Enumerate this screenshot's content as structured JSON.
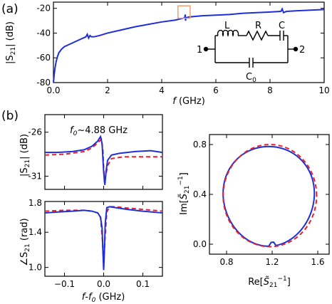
{
  "panel_labels": {
    "a": "(a)",
    "b": "(b)"
  },
  "colors": {
    "data": "#1f2fd6",
    "fit": "#e8202a",
    "highlight": "#f0a070",
    "axis": "#000000"
  },
  "annotation": {
    "resonance": "f0~4.88 GHz"
  },
  "circuit": {
    "L": "L",
    "R": "R",
    "C": "C",
    "C0": "C0",
    "port1": "1",
    "port2": "2"
  },
  "chart_data": [
    {
      "id": "panel-a",
      "type": "line",
      "xlabel": "f (GHz)",
      "ylabel": "|S21| (dB)",
      "xlim": [
        0,
        10
      ],
      "ylim": [
        -80,
        -15
      ],
      "xticks": [
        0,
        2,
        4,
        6,
        8,
        10
      ],
      "yticks": [
        -20,
        -40,
        -60,
        -80
      ],
      "highlight_box": {
        "x": [
          4.6,
          5.05
        ],
        "y": [
          -28,
          -18
        ]
      },
      "series": [
        {
          "x": [
            0.0,
            0.03,
            0.06,
            0.1,
            0.15,
            0.2,
            0.3,
            0.4,
            0.5,
            0.7,
            0.9,
            1.0,
            1.1,
            1.2,
            1.25,
            1.3,
            1.35,
            1.4,
            1.5,
            1.7,
            2.0,
            2.5,
            3.0,
            3.5,
            4.0,
            4.5,
            4.8,
            4.85,
            4.87,
            4.88,
            4.89,
            4.92,
            5.0,
            5.5,
            6.0,
            6.5,
            7.0,
            7.5,
            8.0,
            8.4,
            8.45,
            8.5,
            8.6,
            9.0,
            9.5,
            10.0
          ],
          "y": [
            -80,
            -73,
            -68,
            -63,
            -59,
            -56,
            -53,
            -51,
            -50,
            -48,
            -46,
            -45,
            -44,
            -43,
            -41,
            -44,
            -42,
            -43,
            -43,
            -42,
            -40,
            -37.5,
            -35,
            -33,
            -31,
            -29.5,
            -28,
            -27.5,
            -25,
            -30,
            -28,
            -27.5,
            -27,
            -26,
            -25.5,
            -25,
            -24,
            -23.5,
            -23,
            -22.5,
            -20.5,
            -23.5,
            -22.5,
            -22,
            -21.5,
            -21
          ]
        }
      ]
    },
    {
      "id": "panel-b-mag",
      "type": "line",
      "xlabel": "",
      "ylabel": "|S21| (dB)",
      "xlim": [
        -0.15,
        0.15
      ],
      "ylim": [
        -32.5,
        -24
      ],
      "yticks": [
        -26,
        -31
      ],
      "series": [
        {
          "name": "measured",
          "x": [
            -0.15,
            -0.12,
            -0.08,
            -0.05,
            -0.03,
            -0.015,
            -0.008,
            -0.004,
            0.0,
            0.003,
            0.006,
            0.01,
            0.02,
            0.04,
            0.08,
            0.12,
            0.15
          ],
          "y": [
            -28.3,
            -28.3,
            -28.2,
            -28.0,
            -27.6,
            -27.0,
            -26.5,
            -27.3,
            -30.5,
            -32.0,
            -30.5,
            -29.2,
            -28.6,
            -28.4,
            -28.2,
            -28.1,
            -28.3
          ]
        },
        {
          "name": "fit",
          "x": [
            -0.15,
            -0.1,
            -0.05,
            -0.03,
            -0.015,
            -0.006,
            -0.002,
            0.0,
            0.002,
            0.005,
            0.01,
            0.02,
            0.05,
            0.1,
            0.15
          ],
          "y": [
            -28.6,
            -28.5,
            -28.2,
            -27.8,
            -27.2,
            -26.8,
            -28.0,
            -30.0,
            -31.7,
            -31.0,
            -29.8,
            -29.0,
            -28.8,
            -28.8,
            -28.8
          ]
        }
      ]
    },
    {
      "id": "panel-b-phase",
      "type": "line",
      "xlabel": "f-f0 (GHz)",
      "ylabel": "∠S21 (rad)",
      "xlim": [
        -0.15,
        0.15
      ],
      "ylim": [
        0.9,
        1.75
      ],
      "xticks": [
        -0.1,
        0.0,
        0.1
      ],
      "yticks": [
        1.8,
        1.4,
        1.0
      ],
      "series": [
        {
          "name": "measured",
          "x": [
            -0.15,
            -0.12,
            -0.08,
            -0.05,
            -0.03,
            -0.015,
            -0.008,
            -0.004,
            -0.002,
            0.0,
            0.002,
            0.004,
            0.008,
            0.015,
            0.03,
            0.06,
            0.1,
            0.15
          ],
          "y": [
            1.62,
            1.63,
            1.64,
            1.65,
            1.64,
            1.62,
            1.57,
            1.45,
            1.2,
            0.97,
            1.2,
            1.5,
            1.68,
            1.69,
            1.68,
            1.66,
            1.64,
            1.62
          ]
        },
        {
          "name": "fit",
          "x": [
            -0.15,
            -0.1,
            -0.05,
            -0.03,
            -0.015,
            -0.008,
            -0.003,
            0.0,
            0.003,
            0.008,
            0.015,
            0.03,
            0.05,
            0.1,
            0.15
          ],
          "y": [
            1.64,
            1.65,
            1.65,
            1.64,
            1.62,
            1.57,
            1.3,
            1.0,
            1.3,
            1.63,
            1.69,
            1.69,
            1.68,
            1.66,
            1.64
          ]
        }
      ]
    },
    {
      "id": "panel-b-circle",
      "type": "scatter",
      "xlabel": "Re[S̃21^-1]",
      "ylabel": "Im[S̃21^-1]",
      "xlim": [
        0.65,
        1.7
      ],
      "ylim": [
        -0.08,
        0.88
      ],
      "xticks": [
        0.8,
        1.2,
        1.6
      ],
      "yticks": [
        0.8,
        0.4,
        0.0
      ],
      "series": [
        {
          "name": "measured",
          "center": [
            1.17,
            0.39
          ],
          "radius": 0.4,
          "notch_x": 1.2
        },
        {
          "name": "fit",
          "center": [
            1.18,
            0.39
          ],
          "radius": 0.41
        }
      ]
    }
  ]
}
